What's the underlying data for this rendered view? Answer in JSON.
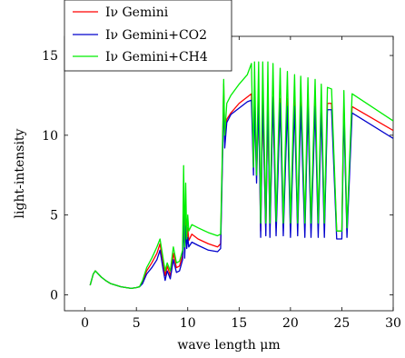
{
  "chart_data": {
    "type": "line",
    "title": "",
    "xlabel": "wave length μm",
    "ylabel": "light-intensity",
    "xlim": [
      -2,
      30
    ],
    "ylim": [
      -1,
      16.2
    ],
    "xticks": [
      0,
      5,
      10,
      15,
      20,
      25,
      30
    ],
    "yticks": [
      0,
      5,
      10,
      15
    ],
    "grid": false,
    "legend_position": "top-left",
    "series": [
      {
        "name": "Iν Gemini",
        "color": "#ff0000",
        "points": [
          [
            0.5,
            0.6
          ],
          [
            0.8,
            1.3
          ],
          [
            1.0,
            1.5
          ],
          [
            1.3,
            1.3
          ],
          [
            1.6,
            1.1
          ],
          [
            2.0,
            0.9
          ],
          [
            2.5,
            0.7
          ],
          [
            3.0,
            0.6
          ],
          [
            3.5,
            0.5
          ],
          [
            4.0,
            0.45
          ],
          [
            4.5,
            0.4
          ],
          [
            5.0,
            0.45
          ],
          [
            5.3,
            0.5
          ],
          [
            5.6,
            0.8
          ],
          [
            6.0,
            1.5
          ],
          [
            6.5,
            2.0
          ],
          [
            7.0,
            2.6
          ],
          [
            7.3,
            3.2
          ],
          [
            7.6,
            2.0
          ],
          [
            7.8,
            1.2
          ],
          [
            8.0,
            1.8
          ],
          [
            8.3,
            1.2
          ],
          [
            8.6,
            2.6
          ],
          [
            8.9,
            1.7
          ],
          [
            9.2,
            1.8
          ],
          [
            9.5,
            2.5
          ],
          [
            9.6,
            5.5
          ],
          [
            9.7,
            2.6
          ],
          [
            9.8,
            4.8
          ],
          [
            9.9,
            3.2
          ],
          [
            10.0,
            4.2
          ],
          [
            10.1,
            3.4
          ],
          [
            10.4,
            3.8
          ],
          [
            11.0,
            3.5
          ],
          [
            12.0,
            3.2
          ],
          [
            12.9,
            3.0
          ],
          [
            13.2,
            3.2
          ],
          [
            13.4,
            9.5
          ],
          [
            13.5,
            13.2
          ],
          [
            13.6,
            9.6
          ],
          [
            13.8,
            11.0
          ],
          [
            14.2,
            11.4
          ],
          [
            15.0,
            12.0
          ],
          [
            15.8,
            12.4
          ],
          [
            16.2,
            12.6
          ],
          [
            16.4,
            8.0
          ],
          [
            16.5,
            12.5
          ],
          [
            16.7,
            7.5
          ],
          [
            16.9,
            12.4
          ],
          [
            17.1,
            4.0
          ],
          [
            17.3,
            12.0
          ],
          [
            17.6,
            4.0
          ],
          [
            17.8,
            12.3
          ],
          [
            18.0,
            4.0
          ],
          [
            18.3,
            12.3
          ],
          [
            18.6,
            4.2
          ],
          [
            19.0,
            12.3
          ],
          [
            19.3,
            4.3
          ],
          [
            19.7,
            12.3
          ],
          [
            20.0,
            4.2
          ],
          [
            20.4,
            12.2
          ],
          [
            20.7,
            4.3
          ],
          [
            21.0,
            12.2
          ],
          [
            21.4,
            4.3
          ],
          [
            21.7,
            12.2
          ],
          [
            22.0,
            4.2
          ],
          [
            22.4,
            12.2
          ],
          [
            22.7,
            4.3
          ],
          [
            23.0,
            12.0
          ],
          [
            23.3,
            4.2
          ],
          [
            23.6,
            12.0
          ],
          [
            24.0,
            12.0
          ],
          [
            24.5,
            4.0
          ],
          [
            25.0,
            4.0
          ],
          [
            25.2,
            12.0
          ],
          [
            25.5,
            4.0
          ],
          [
            26.0,
            11.8
          ],
          [
            30.0,
            10.3
          ]
        ]
      },
      {
        "name": "Iν Gemini+CO2",
        "color": "#0000cc",
        "points": [
          [
            0.5,
            0.6
          ],
          [
            0.8,
            1.3
          ],
          [
            1.0,
            1.5
          ],
          [
            1.3,
            1.3
          ],
          [
            1.6,
            1.1
          ],
          [
            2.0,
            0.9
          ],
          [
            2.5,
            0.7
          ],
          [
            3.0,
            0.6
          ],
          [
            3.5,
            0.5
          ],
          [
            4.0,
            0.45
          ],
          [
            4.5,
            0.4
          ],
          [
            5.0,
            0.45
          ],
          [
            5.3,
            0.5
          ],
          [
            5.6,
            0.7
          ],
          [
            6.0,
            1.3
          ],
          [
            6.5,
            1.7
          ],
          [
            7.0,
            2.2
          ],
          [
            7.3,
            2.8
          ],
          [
            7.6,
            1.6
          ],
          [
            7.8,
            0.9
          ],
          [
            8.0,
            1.5
          ],
          [
            8.3,
            1.0
          ],
          [
            8.6,
            2.2
          ],
          [
            8.9,
            1.4
          ],
          [
            9.2,
            1.5
          ],
          [
            9.5,
            2.2
          ],
          [
            9.6,
            5.0
          ],
          [
            9.7,
            2.3
          ],
          [
            9.8,
            4.3
          ],
          [
            9.9,
            2.9
          ],
          [
            10.0,
            3.6
          ],
          [
            10.1,
            3.0
          ],
          [
            10.4,
            3.3
          ],
          [
            11.0,
            3.1
          ],
          [
            12.0,
            2.8
          ],
          [
            12.9,
            2.7
          ],
          [
            13.2,
            2.9
          ],
          [
            13.4,
            9.0
          ],
          [
            13.5,
            12.5
          ],
          [
            13.6,
            9.2
          ],
          [
            13.8,
            10.8
          ],
          [
            14.2,
            11.3
          ],
          [
            15.0,
            11.7
          ],
          [
            15.8,
            12.1
          ],
          [
            16.2,
            12.2
          ],
          [
            16.4,
            7.5
          ],
          [
            16.5,
            12.1
          ],
          [
            16.7,
            7.0
          ],
          [
            16.9,
            12.2
          ],
          [
            17.1,
            3.6
          ],
          [
            17.3,
            12.4
          ],
          [
            17.6,
            3.7
          ],
          [
            17.8,
            12.4
          ],
          [
            18.0,
            3.6
          ],
          [
            18.3,
            12.4
          ],
          [
            18.6,
            3.7
          ],
          [
            19.0,
            12.0
          ],
          [
            19.3,
            3.7
          ],
          [
            19.7,
            11.8
          ],
          [
            20.0,
            3.6
          ],
          [
            20.4,
            11.8
          ],
          [
            20.7,
            3.7
          ],
          [
            21.0,
            11.8
          ],
          [
            21.4,
            3.6
          ],
          [
            21.7,
            11.8
          ],
          [
            22.0,
            3.6
          ],
          [
            22.4,
            11.8
          ],
          [
            22.7,
            3.6
          ],
          [
            23.0,
            11.6
          ],
          [
            23.3,
            3.6
          ],
          [
            23.6,
            11.6
          ],
          [
            24.0,
            11.6
          ],
          [
            24.5,
            3.5
          ],
          [
            25.0,
            3.5
          ],
          [
            25.2,
            11.5
          ],
          [
            25.5,
            3.6
          ],
          [
            26.0,
            11.4
          ],
          [
            30.0,
            9.8
          ]
        ]
      },
      {
        "name": "Iν Gemini+CH4",
        "color": "#00ee00",
        "points": [
          [
            0.5,
            0.6
          ],
          [
            0.8,
            1.3
          ],
          [
            1.0,
            1.5
          ],
          [
            1.3,
            1.3
          ],
          [
            1.6,
            1.1
          ],
          [
            2.0,
            0.9
          ],
          [
            2.5,
            0.7
          ],
          [
            3.0,
            0.6
          ],
          [
            3.5,
            0.5
          ],
          [
            4.0,
            0.45
          ],
          [
            4.5,
            0.4
          ],
          [
            5.0,
            0.45
          ],
          [
            5.3,
            0.5
          ],
          [
            5.6,
            0.9
          ],
          [
            6.0,
            1.7
          ],
          [
            6.5,
            2.3
          ],
          [
            7.0,
            3.0
          ],
          [
            7.3,
            3.5
          ],
          [
            7.6,
            2.3
          ],
          [
            7.8,
            1.5
          ],
          [
            8.0,
            2.0
          ],
          [
            8.3,
            1.5
          ],
          [
            8.6,
            3.0
          ],
          [
            8.9,
            2.0
          ],
          [
            9.2,
            2.1
          ],
          [
            9.5,
            2.8
          ],
          [
            9.6,
            8.1
          ],
          [
            9.7,
            3.0
          ],
          [
            9.8,
            7.0
          ],
          [
            9.9,
            3.5
          ],
          [
            10.0,
            5.0
          ],
          [
            10.1,
            4.0
          ],
          [
            10.4,
            4.4
          ],
          [
            11.0,
            4.2
          ],
          [
            12.0,
            3.9
          ],
          [
            12.9,
            3.7
          ],
          [
            13.2,
            3.8
          ],
          [
            13.4,
            10.0
          ],
          [
            13.5,
            13.5
          ],
          [
            13.6,
            10.0
          ],
          [
            13.8,
            12.0
          ],
          [
            14.2,
            12.5
          ],
          [
            15.0,
            13.2
          ],
          [
            15.8,
            13.8
          ],
          [
            16.2,
            14.5
          ],
          [
            16.4,
            8.0
          ],
          [
            16.5,
            14.6
          ],
          [
            16.7,
            7.5
          ],
          [
            16.9,
            14.6
          ],
          [
            17.1,
            4.5
          ],
          [
            17.3,
            14.6
          ],
          [
            17.6,
            4.5
          ],
          [
            17.8,
            14.6
          ],
          [
            18.0,
            4.5
          ],
          [
            18.3,
            14.5
          ],
          [
            18.6,
            4.6
          ],
          [
            19.0,
            14.2
          ],
          [
            19.3,
            4.5
          ],
          [
            19.7,
            14.0
          ],
          [
            20.0,
            4.5
          ],
          [
            20.4,
            13.8
          ],
          [
            20.7,
            4.5
          ],
          [
            21.0,
            13.7
          ],
          [
            21.4,
            4.5
          ],
          [
            21.7,
            13.6
          ],
          [
            22.0,
            4.5
          ],
          [
            22.4,
            13.5
          ],
          [
            22.7,
            4.5
          ],
          [
            23.0,
            13.2
          ],
          [
            23.3,
            4.5
          ],
          [
            23.6,
            13.0
          ],
          [
            24.0,
            12.9
          ],
          [
            24.5,
            4.0
          ],
          [
            25.0,
            4.0
          ],
          [
            25.2,
            12.8
          ],
          [
            25.5,
            4.2
          ],
          [
            26.0,
            12.6
          ],
          [
            30.0,
            10.9
          ]
        ]
      }
    ]
  }
}
